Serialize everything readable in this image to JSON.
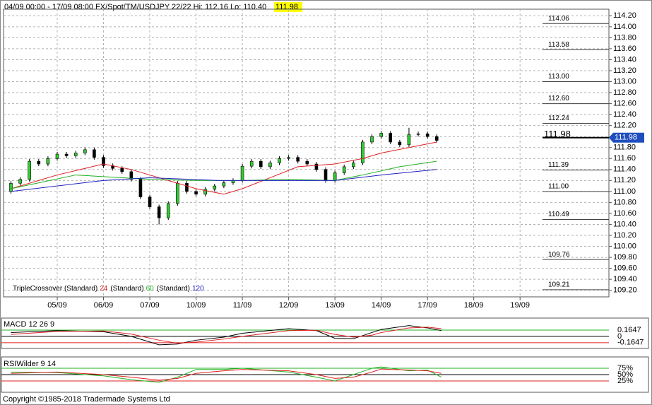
{
  "header": {
    "subtitle": "04/09 00:00 - 17/09 08:00  FX/Spot/TM/USDJPY 22/22  Hi: 112.16  Lo: 110.40",
    "last": 111.98
  },
  "footer": "Copyright ©1985-2018 Tradermade Systems Ltd",
  "chart_data": [
    {
      "type": "candlestick",
      "xlim": [
        -0.16,
        12.92
      ],
      "xticks": [
        {
          "value": 1,
          "label": "05/09"
        },
        {
          "value": 2,
          "label": "06/09"
        },
        {
          "value": 3,
          "label": "07/09"
        },
        {
          "value": 4,
          "label": "10/09"
        },
        {
          "value": 5,
          "label": "11/09"
        },
        {
          "value": 6,
          "label": "12/09"
        },
        {
          "value": 7,
          "label": "13/09"
        },
        {
          "value": 8,
          "label": "14/09"
        },
        {
          "value": 9,
          "label": "17/09"
        },
        {
          "value": 10,
          "label": "18/09"
        },
        {
          "value": 11,
          "label": "19/09"
        }
      ],
      "ylim": [
        109.08,
        114.32
      ],
      "yticks": [
        {
          "value": 109.2,
          "label": "109.20"
        },
        {
          "value": 109.4,
          "label": "109.40"
        },
        {
          "value": 109.6,
          "label": "109.60"
        },
        {
          "value": 109.8,
          "label": "109.80"
        },
        {
          "value": 110.0,
          "label": "110.00"
        },
        {
          "value": 110.2,
          "label": "110.20"
        },
        {
          "value": 110.4,
          "label": "110.40"
        },
        {
          "value": 110.6,
          "label": "110.60"
        },
        {
          "value": 110.8,
          "label": "110.80"
        },
        {
          "value": 111.0,
          "label": "111.00"
        },
        {
          "value": 111.2,
          "label": "111.20"
        },
        {
          "value": 111.4,
          "label": "111.40"
        },
        {
          "value": 111.6,
          "label": "111.60"
        },
        {
          "value": 111.8,
          "label": "111.80"
        },
        {
          "value": 112.0,
          "label": "112.00"
        },
        {
          "value": 112.2,
          "label": "112.20"
        },
        {
          "value": 112.4,
          "label": "112.40"
        },
        {
          "value": 112.6,
          "label": "112.60"
        },
        {
          "value": 112.8,
          "label": "112.80"
        },
        {
          "value": 113.0,
          "label": "113.00"
        },
        {
          "value": 113.2,
          "label": "113.20"
        },
        {
          "value": 113.4,
          "label": "113.40"
        },
        {
          "value": 113.6,
          "label": "113.60"
        },
        {
          "value": 113.8,
          "label": "113.80"
        },
        {
          "value": 114.0,
          "label": "114.00"
        },
        {
          "value": 114.2,
          "label": "114.20"
        }
      ],
      "grid": true,
      "up_color": "#33cc33",
      "down_color": "#000000",
      "levels": [
        {
          "value": 114.06,
          "label": "114.06"
        },
        {
          "value": 113.58,
          "label": "113.58"
        },
        {
          "value": 113.0,
          "label": "113.00"
        },
        {
          "value": 112.6,
          "label": "112.60"
        },
        {
          "value": 112.24,
          "label": "112.24"
        },
        {
          "value": 111.39,
          "label": "111.39"
        },
        {
          "value": 111.0,
          "label": "111.00"
        },
        {
          "value": 110.49,
          "label": "110.49"
        },
        {
          "value": 109.76,
          "label": "109.76"
        },
        {
          "value": 109.21,
          "label": "109.21"
        }
      ],
      "current": 111.98,
      "x": [
        0,
        0.2,
        0.4,
        0.6,
        0.8,
        1,
        1.2,
        1.4,
        1.6,
        1.8,
        2,
        2.2,
        2.4,
        2.6,
        2.8,
        3,
        3.2,
        3.4,
        3.6,
        3.8,
        4,
        4.2,
        4.4,
        4.6,
        4.8,
        5,
        5.2,
        5.4,
        5.6,
        5.8,
        6,
        6.2,
        6.4,
        6.6,
        6.8,
        7,
        7.2,
        7.4,
        7.6,
        7.8,
        8,
        8.2,
        8.4,
        8.6,
        8.8,
        9,
        9.2
      ],
      "open": [
        111.0,
        111.15,
        111.22,
        111.55,
        111.5,
        111.6,
        111.68,
        111.65,
        111.7,
        111.76,
        111.62,
        111.47,
        111.42,
        111.36,
        111.22,
        110.9,
        110.72,
        110.52,
        110.78,
        111.15,
        111.0,
        110.95,
        111.04,
        111.1,
        111.16,
        111.2,
        111.46,
        111.55,
        111.45,
        111.52,
        111.6,
        111.62,
        111.55,
        111.5,
        111.4,
        111.2,
        111.34,
        111.45,
        111.52,
        111.9,
        112.0,
        112.06,
        111.9,
        111.85,
        112.04,
        112.05,
        112.0
      ],
      "high": [
        111.19,
        111.26,
        111.59,
        111.59,
        111.64,
        111.72,
        111.72,
        111.74,
        111.8,
        111.8,
        111.66,
        111.51,
        111.46,
        111.4,
        111.26,
        110.94,
        110.76,
        110.82,
        111.19,
        111.19,
        111.04,
        111.08,
        111.14,
        111.2,
        111.24,
        111.5,
        111.59,
        111.59,
        111.56,
        111.64,
        111.66,
        111.66,
        111.59,
        111.54,
        111.44,
        111.38,
        111.49,
        111.56,
        111.94,
        112.04,
        112.1,
        112.1,
        111.94,
        112.16,
        112.09,
        112.09,
        112.04
      ],
      "low": [
        110.96,
        111.11,
        111.18,
        111.46,
        111.46,
        111.56,
        111.61,
        111.61,
        111.66,
        111.58,
        111.43,
        111.38,
        111.32,
        111.18,
        110.86,
        110.68,
        110.4,
        110.48,
        110.74,
        110.96,
        110.91,
        110.91,
        111.0,
        111.06,
        111.12,
        111.16,
        111.42,
        111.41,
        111.41,
        111.48,
        111.56,
        111.51,
        111.46,
        111.36,
        111.16,
        111.16,
        111.3,
        111.41,
        111.48,
        111.86,
        111.96,
        111.86,
        111.81,
        111.81,
        112.0,
        111.96,
        111.89
      ],
      "close": [
        111.15,
        111.22,
        111.55,
        111.5,
        111.6,
        111.68,
        111.65,
        111.7,
        111.76,
        111.62,
        111.47,
        111.42,
        111.36,
        111.22,
        110.9,
        110.72,
        110.52,
        110.78,
        111.15,
        111.0,
        110.95,
        111.04,
        111.1,
        111.16,
        111.2,
        111.46,
        111.55,
        111.45,
        111.52,
        111.6,
        111.62,
        111.55,
        111.5,
        111.4,
        111.2,
        111.34,
        111.45,
        111.52,
        111.9,
        112.0,
        112.06,
        111.9,
        111.85,
        112.04,
        112.05,
        112.0,
        111.93
      ],
      "series": [
        {
          "name": "24",
          "prefix": "TripleCrossover (Standard)",
          "color": "#e02020",
          "x": [
            0,
            1,
            2,
            2.6,
            3.4,
            4,
            4.6,
            5,
            5.6,
            6.2,
            7,
            7.6,
            8,
            8.6,
            9.2
          ],
          "values": [
            111.05,
            111.3,
            111.5,
            111.4,
            111.2,
            111.05,
            110.95,
            111.05,
            111.25,
            111.45,
            111.5,
            111.6,
            111.7,
            111.8,
            111.9
          ]
        },
        {
          "name": "60",
          "prefix": "(Standard)",
          "color": "#20b020",
          "x": [
            0,
            1.4,
            3,
            4,
            5,
            6,
            7,
            7.6,
            8.4,
            9.2
          ],
          "values": [
            111.05,
            111.3,
            111.22,
            111.2,
            111.2,
            111.22,
            111.2,
            111.3,
            111.45,
            111.55
          ]
        },
        {
          "name": "120",
          "prefix": "(Standard)",
          "color": "#2020c0",
          "x": [
            0,
            2,
            3,
            4.5,
            6,
            7,
            8,
            9.2
          ],
          "values": [
            111.0,
            111.2,
            111.25,
            111.2,
            111.2,
            111.2,
            111.3,
            111.4
          ]
        }
      ]
    },
    {
      "type": "line",
      "title": "MACD 12 26 9",
      "xlim": [
        -0.16,
        12.92
      ],
      "ylim": [
        -0.26,
        0.44
      ],
      "yticks": [
        0.1647,
        0,
        -0.1647
      ],
      "tick_colors": [
        "#20b020",
        "#000000",
        "#e02020"
      ],
      "x": [
        0,
        1,
        2,
        2.6,
        3.2,
        3.6,
        4,
        4.6,
        5,
        6,
        6.6,
        7,
        7.4,
        7.8,
        8,
        8.6,
        9,
        9.3
      ],
      "series": [
        {
          "name": "MACD",
          "color": "#000000",
          "values": [
            0.1,
            0.15,
            0.12,
            0.0,
            -0.22,
            -0.2,
            -0.1,
            -0.02,
            0.08,
            0.2,
            0.15,
            -0.05,
            -0.06,
            0.1,
            0.18,
            0.28,
            0.22,
            0.15
          ]
        },
        {
          "name": "Signal",
          "color": "#e02020",
          "values": [
            0.05,
            0.13,
            0.14,
            0.06,
            -0.1,
            -0.18,
            -0.15,
            -0.07,
            0.0,
            0.15,
            0.16,
            0.05,
            -0.02,
            0.03,
            0.1,
            0.22,
            0.24,
            0.2
          ]
        }
      ]
    },
    {
      "type": "line",
      "title": "RSIWilder 9 14",
      "xlim": [
        -0.16,
        12.92
      ],
      "ylim": [
        -11,
        111
      ],
      "yticks": [
        {
          "value": 75,
          "label": "75%"
        },
        {
          "value": 50,
          "label": "50%"
        },
        {
          "value": 25,
          "label": "25%"
        }
      ],
      "tick_colors": [
        "#20b020",
        "#000000",
        "#e02020"
      ],
      "x": [
        0,
        1,
        2,
        2.6,
        3.2,
        3.6,
        4,
        4.6,
        5,
        6,
        6.6,
        7,
        7.4,
        7.8,
        8,
        8.6,
        9,
        9.3
      ],
      "series": [
        {
          "name": "RSI",
          "color": "#20b020",
          "values": [
            60,
            58,
            45,
            30,
            20,
            40,
            70,
            70,
            75,
            60,
            40,
            25,
            50,
            75,
            80,
            65,
            68,
            40
          ]
        },
        {
          "name": "Signal",
          "color": "#e02020",
          "values": [
            55,
            60,
            50,
            40,
            28,
            35,
            55,
            65,
            70,
            65,
            50,
            35,
            40,
            60,
            72,
            68,
            65,
            55
          ]
        }
      ]
    }
  ]
}
